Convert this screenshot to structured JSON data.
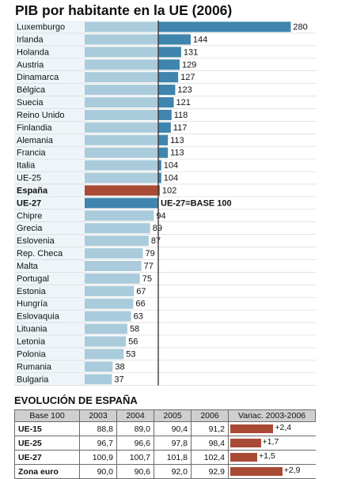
{
  "title": "PIB por habitante en la UE (2006)",
  "chart_data": {
    "type": "bar",
    "orientation": "horizontal",
    "title": "PIB por habitante en la UE (2006)",
    "categories": [
      "Luxemburgo",
      "Irlanda",
      "Holanda",
      "Austria",
      "Dinamarca",
      "Bélgica",
      "Suecia",
      "Reino Unido",
      "Finlandia",
      "Alemania",
      "Francia",
      "Italia",
      "UE-25",
      "España",
      "UE-27",
      "Chipre",
      "Grecia",
      "Eslovenia",
      "Rep. Checa",
      "Malta",
      "Portugal",
      "Estonia",
      "Hungría",
      "Eslovaquia",
      "Lituania",
      "Letonia",
      "Polonia",
      "Rumania",
      "Bulgaria"
    ],
    "values": [
      280,
      144,
      131,
      129,
      127,
      123,
      121,
      118,
      117,
      113,
      113,
      104,
      104,
      102,
      100,
      94,
      89,
      87,
      79,
      77,
      75,
      67,
      66,
      63,
      58,
      56,
      53,
      38,
      37
    ],
    "value_labels": [
      "280",
      "144",
      "131",
      "129",
      "127",
      "123",
      "121",
      "118",
      "117",
      "113",
      "113",
      "104",
      "104",
      "102",
      "UE-27=BASE 100",
      "94",
      "89",
      "87",
      "79",
      "77",
      "75",
      "67",
      "66",
      "63",
      "58",
      "56",
      "53",
      "38",
      "37"
    ],
    "highlight": {
      "España": "#a94a35",
      "UE-27": "#3f85ad"
    },
    "colors": {
      "light": "#aacbdc",
      "dark": "#3f85ad",
      "accent": "#a94a35"
    },
    "bold_categories": [
      "España",
      "UE-27"
    ],
    "base_line": 100
  },
  "evolucion": {
    "title": "EVOLUCIÓN DE ESPAÑA",
    "headers": [
      "Base 100",
      "2003",
      "2004",
      "2005",
      "2006",
      "Variac. 2003-2006"
    ],
    "rows": [
      {
        "label": "UE-15",
        "values": [
          "88,8",
          "89,0",
          "90,4",
          "91,2"
        ],
        "variation": 2.4,
        "variation_label": "+2,4"
      },
      {
        "label": "UE-25",
        "values": [
          "96,7",
          "96,6",
          "97,8",
          "98,4"
        ],
        "variation": 1.7,
        "variation_label": "+1,7"
      },
      {
        "label": "UE-27",
        "values": [
          "100,9",
          "100,7",
          "101,8",
          "102,4"
        ],
        "variation": 1.5,
        "variation_label": "+1,5"
      },
      {
        "label": "Zona euro",
        "values": [
          "90,0",
          "90,6",
          "92,0",
          "92,9"
        ],
        "variation": 2.9,
        "variation_label": "+2,9"
      }
    ],
    "bar_color": "#a94a35"
  }
}
